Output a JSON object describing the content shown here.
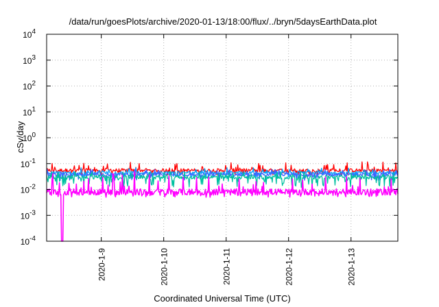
{
  "chart_data": {
    "type": "line",
    "title": "/data/run/goesPlots/archive/2020-01-13/18:00/flux/../bryn/5daysEarthData.plot",
    "xlabel": "Coordinated Universal Time (UTC)",
    "ylabel": "cSv/day",
    "y_scale": "log",
    "ylim": [
      0.0001,
      10000
    ],
    "y_ticks": [
      {
        "value": 0.0001,
        "base": "10",
        "exp": "-4"
      },
      {
        "value": 0.001,
        "base": "10",
        "exp": "-3"
      },
      {
        "value": 0.01,
        "base": "10",
        "exp": "-2"
      },
      {
        "value": 0.1,
        "base": "10",
        "exp": "-1"
      },
      {
        "value": 1,
        "base": "10",
        "exp": "0"
      },
      {
        "value": 10,
        "base": "10",
        "exp": "1"
      },
      {
        "value": 100,
        "base": "10",
        "exp": "2"
      },
      {
        "value": 1000,
        "base": "10",
        "exp": "3"
      },
      {
        "value": 10000,
        "base": "10",
        "exp": "4"
      }
    ],
    "xlim": [
      "2020-01-08 03:00",
      "2020-01-13 18:00"
    ],
    "x_ticks": [
      "2020-1-9",
      "2020-1-10",
      "2020-1-11",
      "2020-1-12",
      "2020-1-13"
    ],
    "grid": true,
    "series": [
      {
        "color": "#ff0000",
        "typical": 0.055,
        "low": 0.035,
        "high": 0.12
      },
      {
        "color": "#00a0ff",
        "typical": 0.045,
        "low": 0.028,
        "high": 0.07
      },
      {
        "color": "#4060ff",
        "typical": 0.038,
        "low": 0.022,
        "high": 0.06
      },
      {
        "color": "#00c0a0",
        "typical": 0.03,
        "low": 0.012,
        "high": 0.05
      },
      {
        "color": "#ff00ff",
        "typical": 0.008,
        "low": 0.005,
        "high": 0.05,
        "dip": {
          "x": "2020-01-08 09:00",
          "value": 0.0001
        }
      }
    ]
  }
}
